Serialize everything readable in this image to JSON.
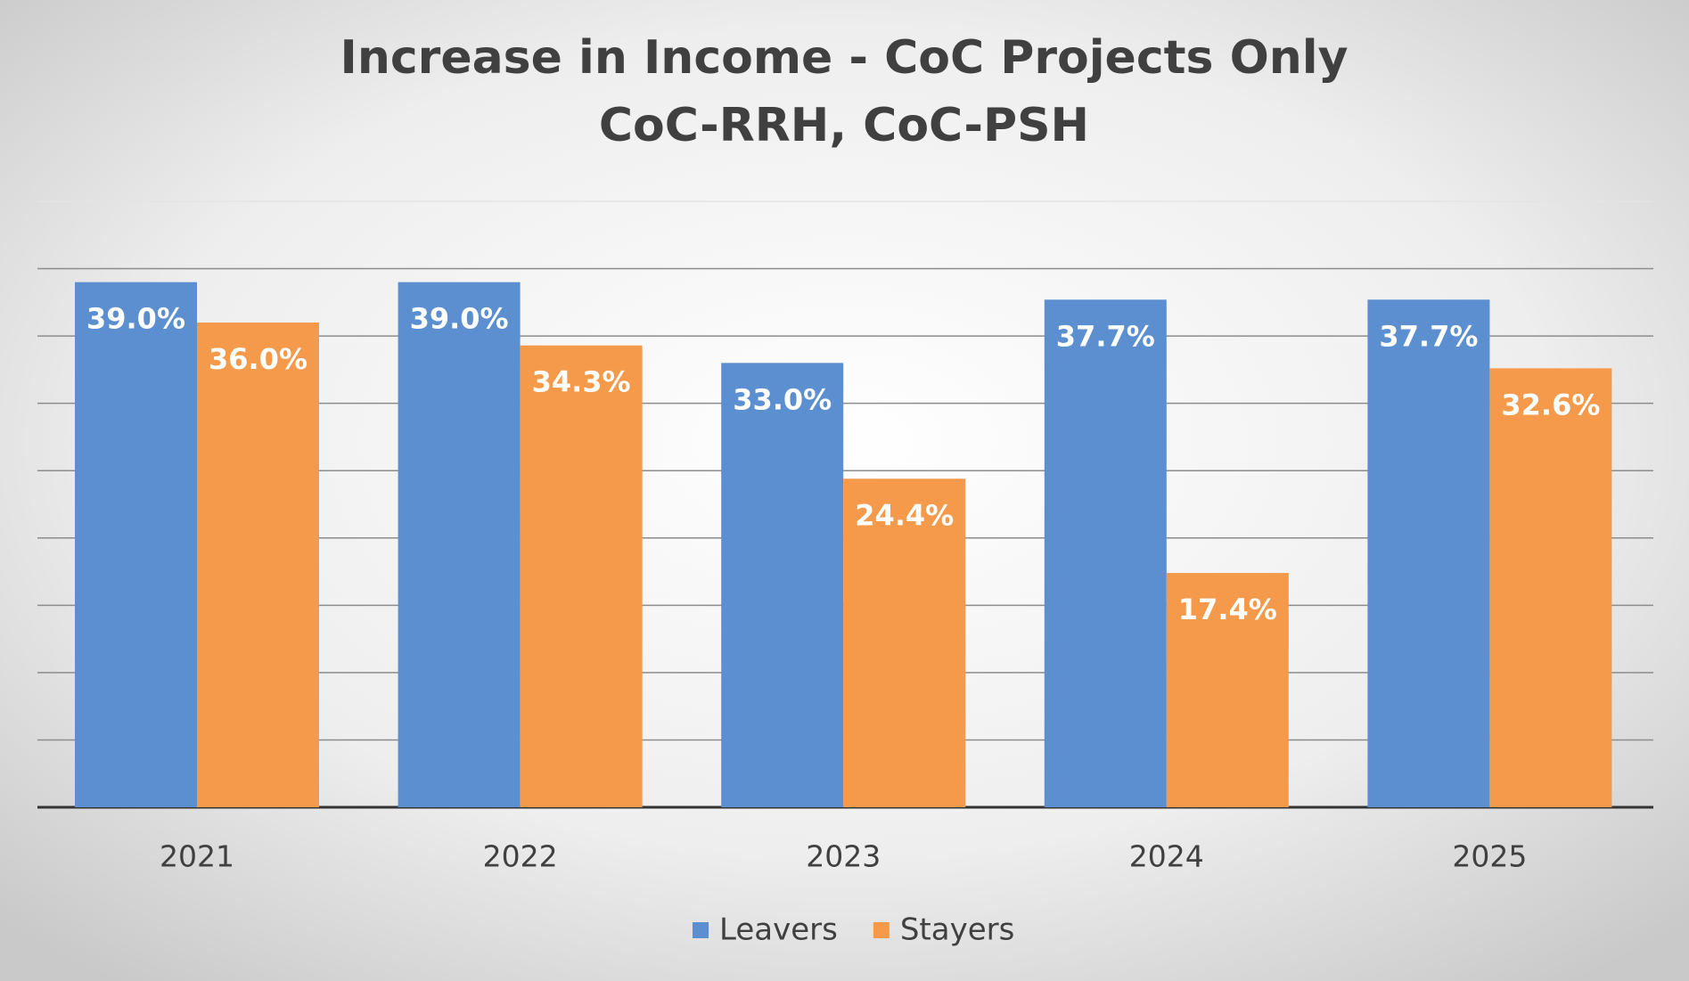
{
  "chart_data": {
    "type": "bar",
    "title": [
      "Increase in Income - CoC Projects Only",
      "CoC-RRH, CoC-PSH"
    ],
    "categories": [
      "2021",
      "2022",
      "2023",
      "2024",
      "2025"
    ],
    "series": [
      {
        "name": "Leavers",
        "color": "#5b8fd0",
        "values": [
          39.0,
          39.0,
          33.0,
          37.7,
          37.7
        ],
        "value_labels": [
          "39.0%",
          "39.0%",
          "33.0%",
          "37.7%",
          "37.7%"
        ]
      },
      {
        "name": "Stayers",
        "color": "#f5994a",
        "values": [
          36.0,
          34.3,
          24.4,
          17.4,
          32.6
        ],
        "value_labels": [
          "36.0%",
          "34.3%",
          "24.4%",
          "17.4%",
          "32.6%"
        ]
      }
    ],
    "ylim": [
      0,
      45
    ],
    "yticks": [
      0,
      5,
      10,
      15,
      20,
      25,
      30,
      35,
      40,
      45
    ],
    "grid": true,
    "legend": "bottom"
  }
}
